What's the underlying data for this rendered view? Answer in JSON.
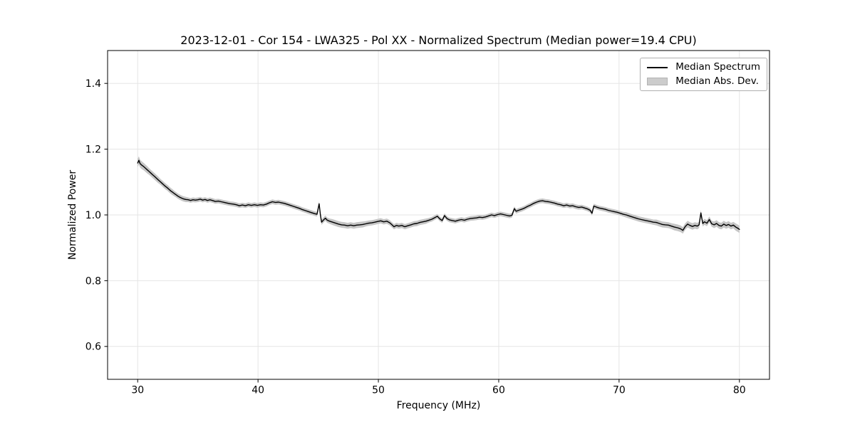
{
  "chart_data": {
    "type": "line",
    "title": "2023-12-01 - Cor 154 - LWA325 - Pol XX - Normalized Spectrum (Median power=19.4 CPU)",
    "xlabel": "Frequency (MHz)",
    "ylabel": "Normalized Power",
    "xlim": [
      27.5,
      82.5
    ],
    "ylim": [
      0.5,
      1.5
    ],
    "xticks": [
      30,
      40,
      50,
      60,
      70,
      80
    ],
    "yticks": [
      0.6,
      0.8,
      1.0,
      1.2,
      1.4
    ],
    "grid": true,
    "legend": {
      "location": "upper right",
      "entries": [
        {
          "label": "Median Spectrum",
          "type": "line",
          "color": "#000000"
        },
        {
          "label": "Median Abs. Dev.",
          "type": "patch",
          "color": "#cccccc",
          "edgecolor": "#b3b3b3"
        }
      ]
    },
    "colors": {
      "line": "#000000",
      "band": "#c6c6c6",
      "grid": "#e5e5e5",
      "frame": "#000000",
      "background": "#ffffff"
    },
    "series": [
      {
        "name": "Median Spectrum",
        "band_name": "Median Abs. Dev.",
        "points": [
          [
            30.0,
            1.158,
            0.013
          ],
          [
            30.1,
            1.166,
            0.012
          ],
          [
            30.2,
            1.156,
            0.012
          ],
          [
            30.35,
            1.151,
            0.012
          ],
          [
            30.5,
            1.147,
            0.011
          ],
          [
            30.65,
            1.142,
            0.011
          ],
          [
            30.8,
            1.137,
            0.011
          ],
          [
            30.95,
            1.132,
            0.01
          ],
          [
            31.1,
            1.127,
            0.01
          ],
          [
            31.25,
            1.122,
            0.01
          ],
          [
            31.4,
            1.117,
            0.01
          ],
          [
            31.55,
            1.112,
            0.01
          ],
          [
            31.7,
            1.107,
            0.01
          ],
          [
            31.85,
            1.102,
            0.009
          ],
          [
            32.0,
            1.097,
            0.009
          ],
          [
            32.15,
            1.092,
            0.009
          ],
          [
            32.3,
            1.087,
            0.009
          ],
          [
            32.45,
            1.083,
            0.009
          ],
          [
            32.6,
            1.078,
            0.009
          ],
          [
            32.75,
            1.073,
            0.009
          ],
          [
            32.9,
            1.069,
            0.009
          ],
          [
            33.05,
            1.065,
            0.008
          ],
          [
            33.2,
            1.061,
            0.008
          ],
          [
            33.35,
            1.057,
            0.008
          ],
          [
            33.5,
            1.054,
            0.008
          ],
          [
            33.65,
            1.051,
            0.008
          ],
          [
            33.8,
            1.049,
            0.008
          ],
          [
            34.0,
            1.047,
            0.008
          ],
          [
            34.2,
            1.046,
            0.007
          ],
          [
            34.4,
            1.044,
            0.007
          ],
          [
            34.6,
            1.046,
            0.007
          ],
          [
            34.8,
            1.045,
            0.007
          ],
          [
            35.0,
            1.046,
            0.007
          ],
          [
            35.2,
            1.048,
            0.007
          ],
          [
            35.4,
            1.045,
            0.007
          ],
          [
            35.6,
            1.047,
            0.007
          ],
          [
            35.8,
            1.044,
            0.007
          ],
          [
            36.0,
            1.046,
            0.007
          ],
          [
            36.2,
            1.044,
            0.007
          ],
          [
            36.45,
            1.041,
            0.007
          ],
          [
            36.7,
            1.042,
            0.007
          ],
          [
            36.95,
            1.04,
            0.007
          ],
          [
            37.2,
            1.038,
            0.007
          ],
          [
            37.45,
            1.036,
            0.007
          ],
          [
            37.7,
            1.034,
            0.007
          ],
          [
            37.95,
            1.033,
            0.007
          ],
          [
            38.2,
            1.031,
            0.007
          ],
          [
            38.45,
            1.028,
            0.007
          ],
          [
            38.7,
            1.03,
            0.007
          ],
          [
            38.95,
            1.028,
            0.007
          ],
          [
            39.2,
            1.031,
            0.007
          ],
          [
            39.45,
            1.029,
            0.007
          ],
          [
            39.7,
            1.031,
            0.007
          ],
          [
            39.95,
            1.029,
            0.007
          ],
          [
            40.2,
            1.031,
            0.007
          ],
          [
            40.45,
            1.03,
            0.007
          ],
          [
            40.7,
            1.033,
            0.007
          ],
          [
            40.95,
            1.037,
            0.007
          ],
          [
            41.2,
            1.04,
            0.007
          ],
          [
            41.45,
            1.038,
            0.007
          ],
          [
            41.7,
            1.039,
            0.007
          ],
          [
            41.95,
            1.037,
            0.007
          ],
          [
            42.2,
            1.035,
            0.007
          ],
          [
            42.45,
            1.032,
            0.007
          ],
          [
            42.7,
            1.029,
            0.007
          ],
          [
            42.95,
            1.026,
            0.007
          ],
          [
            43.2,
            1.023,
            0.007
          ],
          [
            43.45,
            1.02,
            0.007
          ],
          [
            43.7,
            1.016,
            0.007
          ],
          [
            43.95,
            1.013,
            0.007
          ],
          [
            44.2,
            1.01,
            0.007
          ],
          [
            44.45,
            1.007,
            0.007
          ],
          [
            44.7,
            1.004,
            0.007
          ],
          [
            44.9,
            1.002,
            0.007
          ],
          [
            45.0,
            1.02,
            0.007
          ],
          [
            45.08,
            1.034,
            0.007
          ],
          [
            45.18,
            1.002,
            0.007
          ],
          [
            45.28,
            0.978,
            0.008
          ],
          [
            45.45,
            0.985,
            0.008
          ],
          [
            45.6,
            0.99,
            0.008
          ],
          [
            45.75,
            0.984,
            0.008
          ],
          [
            45.95,
            0.981,
            0.008
          ],
          [
            46.2,
            0.978,
            0.009
          ],
          [
            46.45,
            0.975,
            0.009
          ],
          [
            46.7,
            0.972,
            0.009
          ],
          [
            46.95,
            0.97,
            0.009
          ],
          [
            47.2,
            0.969,
            0.009
          ],
          [
            47.45,
            0.967,
            0.009
          ],
          [
            47.7,
            0.969,
            0.009
          ],
          [
            47.95,
            0.967,
            0.009
          ],
          [
            48.2,
            0.969,
            0.009
          ],
          [
            48.45,
            0.97,
            0.009
          ],
          [
            48.7,
            0.971,
            0.009
          ],
          [
            48.95,
            0.973,
            0.008
          ],
          [
            49.2,
            0.975,
            0.008
          ],
          [
            49.45,
            0.976,
            0.008
          ],
          [
            49.7,
            0.978,
            0.008
          ],
          [
            49.95,
            0.98,
            0.008
          ],
          [
            50.2,
            0.982,
            0.008
          ],
          [
            50.45,
            0.979,
            0.008
          ],
          [
            50.7,
            0.981,
            0.008
          ],
          [
            50.95,
            0.976,
            0.008
          ],
          [
            51.1,
            0.971,
            0.008
          ],
          [
            51.3,
            0.964,
            0.008
          ],
          [
            51.5,
            0.968,
            0.008
          ],
          [
            51.7,
            0.966,
            0.008
          ],
          [
            51.95,
            0.968,
            0.008
          ],
          [
            52.2,
            0.964,
            0.008
          ],
          [
            52.45,
            0.967,
            0.008
          ],
          [
            52.7,
            0.97,
            0.008
          ],
          [
            52.95,
            0.973,
            0.008
          ],
          [
            53.2,
            0.974,
            0.008
          ],
          [
            53.45,
            0.977,
            0.008
          ],
          [
            53.7,
            0.979,
            0.008
          ],
          [
            53.95,
            0.981,
            0.008
          ],
          [
            54.2,
            0.984,
            0.007
          ],
          [
            54.45,
            0.987,
            0.007
          ],
          [
            54.7,
            0.992,
            0.007
          ],
          [
            54.9,
            0.996,
            0.007
          ],
          [
            55.1,
            0.988,
            0.007
          ],
          [
            55.3,
            0.983,
            0.007
          ],
          [
            55.5,
            0.998,
            0.007
          ],
          [
            55.7,
            0.989,
            0.007
          ],
          [
            55.9,
            0.985,
            0.007
          ],
          [
            56.15,
            0.983,
            0.007
          ],
          [
            56.4,
            0.981,
            0.007
          ],
          [
            56.65,
            0.984,
            0.007
          ],
          [
            56.9,
            0.986,
            0.007
          ],
          [
            57.15,
            0.984,
            0.007
          ],
          [
            57.4,
            0.987,
            0.007
          ],
          [
            57.65,
            0.989,
            0.007
          ],
          [
            57.9,
            0.99,
            0.007
          ],
          [
            58.15,
            0.991,
            0.007
          ],
          [
            58.4,
            0.993,
            0.007
          ],
          [
            58.65,
            0.992,
            0.007
          ],
          [
            58.9,
            0.994,
            0.007
          ],
          [
            59.15,
            0.997,
            0.007
          ],
          [
            59.4,
            1.0,
            0.007
          ],
          [
            59.65,
            0.998,
            0.007
          ],
          [
            59.9,
            1.001,
            0.007
          ],
          [
            60.15,
            1.003,
            0.007
          ],
          [
            60.4,
            1.001,
            0.007
          ],
          [
            60.65,
            0.999,
            0.007
          ],
          [
            60.9,
            0.997,
            0.007
          ],
          [
            61.1,
            0.999,
            0.007
          ],
          [
            61.3,
            1.019,
            0.007
          ],
          [
            61.45,
            1.011,
            0.007
          ],
          [
            61.65,
            1.014,
            0.007
          ],
          [
            61.9,
            1.017,
            0.007
          ],
          [
            62.15,
            1.021,
            0.007
          ],
          [
            62.4,
            1.026,
            0.007
          ],
          [
            62.65,
            1.03,
            0.007
          ],
          [
            62.9,
            1.035,
            0.007
          ],
          [
            63.15,
            1.039,
            0.007
          ],
          [
            63.4,
            1.042,
            0.007
          ],
          [
            63.65,
            1.043,
            0.007
          ],
          [
            63.9,
            1.041,
            0.007
          ],
          [
            64.15,
            1.04,
            0.007
          ],
          [
            64.4,
            1.038,
            0.007
          ],
          [
            64.65,
            1.036,
            0.007
          ],
          [
            64.9,
            1.033,
            0.007
          ],
          [
            65.15,
            1.031,
            0.007
          ],
          [
            65.4,
            1.028,
            0.007
          ],
          [
            65.65,
            1.03,
            0.007
          ],
          [
            65.9,
            1.027,
            0.007
          ],
          [
            66.15,
            1.028,
            0.007
          ],
          [
            66.4,
            1.025,
            0.007
          ],
          [
            66.65,
            1.023,
            0.007
          ],
          [
            66.9,
            1.024,
            0.007
          ],
          [
            67.15,
            1.021,
            0.007
          ],
          [
            67.4,
            1.018,
            0.007
          ],
          [
            67.6,
            1.014,
            0.007
          ],
          [
            67.75,
            1.005,
            0.007
          ],
          [
            67.9,
            1.027,
            0.007
          ],
          [
            68.1,
            1.024,
            0.007
          ],
          [
            68.35,
            1.021,
            0.007
          ],
          [
            68.6,
            1.019,
            0.007
          ],
          [
            68.85,
            1.017,
            0.007
          ],
          [
            69.1,
            1.014,
            0.007
          ],
          [
            69.35,
            1.012,
            0.007
          ],
          [
            69.6,
            1.01,
            0.007
          ],
          [
            69.85,
            1.008,
            0.007
          ],
          [
            70.1,
            1.005,
            0.007
          ],
          [
            70.35,
            1.002,
            0.007
          ],
          [
            70.6,
            1.0,
            0.008
          ],
          [
            70.85,
            0.997,
            0.008
          ],
          [
            71.1,
            0.994,
            0.008
          ],
          [
            71.35,
            0.991,
            0.008
          ],
          [
            71.6,
            0.988,
            0.008
          ],
          [
            71.85,
            0.986,
            0.008
          ],
          [
            72.1,
            0.984,
            0.008
          ],
          [
            72.35,
            0.982,
            0.008
          ],
          [
            72.6,
            0.98,
            0.008
          ],
          [
            72.85,
            0.978,
            0.008
          ],
          [
            73.1,
            0.977,
            0.009
          ],
          [
            73.35,
            0.974,
            0.009
          ],
          [
            73.6,
            0.971,
            0.009
          ],
          [
            73.85,
            0.97,
            0.009
          ],
          [
            74.1,
            0.969,
            0.009
          ],
          [
            74.35,
            0.966,
            0.009
          ],
          [
            74.6,
            0.963,
            0.01
          ],
          [
            74.85,
            0.961,
            0.01
          ],
          [
            75.1,
            0.958,
            0.01
          ],
          [
            75.3,
            0.953,
            0.01
          ],
          [
            75.5,
            0.965,
            0.01
          ],
          [
            75.7,
            0.972,
            0.01
          ],
          [
            75.9,
            0.968,
            0.01
          ],
          [
            76.1,
            0.965,
            0.01
          ],
          [
            76.3,
            0.968,
            0.01
          ],
          [
            76.5,
            0.966,
            0.01
          ],
          [
            76.65,
            0.97,
            0.01
          ],
          [
            76.8,
            1.006,
            0.009
          ],
          [
            76.95,
            0.974,
            0.009
          ],
          [
            77.1,
            0.979,
            0.009
          ],
          [
            77.3,
            0.975,
            0.009
          ],
          [
            77.5,
            0.986,
            0.009
          ],
          [
            77.7,
            0.973,
            0.009
          ],
          [
            77.9,
            0.97,
            0.01
          ],
          [
            78.1,
            0.974,
            0.01
          ],
          [
            78.3,
            0.968,
            0.01
          ],
          [
            78.5,
            0.966,
            0.01
          ],
          [
            78.7,
            0.972,
            0.01
          ],
          [
            78.9,
            0.968,
            0.01
          ],
          [
            79.1,
            0.971,
            0.01
          ],
          [
            79.3,
            0.966,
            0.01
          ],
          [
            79.5,
            0.969,
            0.01
          ],
          [
            79.7,
            0.963,
            0.011
          ],
          [
            79.85,
            0.96,
            0.011
          ],
          [
            80.0,
            0.956,
            0.011
          ]
        ]
      }
    ]
  }
}
